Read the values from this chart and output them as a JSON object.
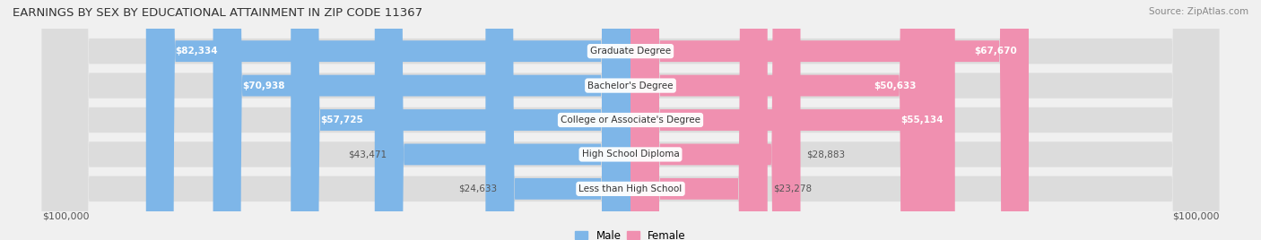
{
  "title": "EARNINGS BY SEX BY EDUCATIONAL ATTAINMENT IN ZIP CODE 11367",
  "source": "Source: ZipAtlas.com",
  "categories": [
    "Less than High School",
    "High School Diploma",
    "College or Associate's Degree",
    "Bachelor's Degree",
    "Graduate Degree"
  ],
  "male_values": [
    24633,
    43471,
    57725,
    70938,
    82334
  ],
  "female_values": [
    23278,
    28883,
    55134,
    50633,
    67670
  ],
  "male_color": "#7EB6E8",
  "female_color": "#F090B0",
  "max_val": 100000,
  "background_color": "#F0F0F0",
  "bar_bg_color": "#E0E0E0",
  "xlabel_left": "$100,000",
  "xlabel_right": "$100,000",
  "legend_male": "Male",
  "legend_female": "Female"
}
